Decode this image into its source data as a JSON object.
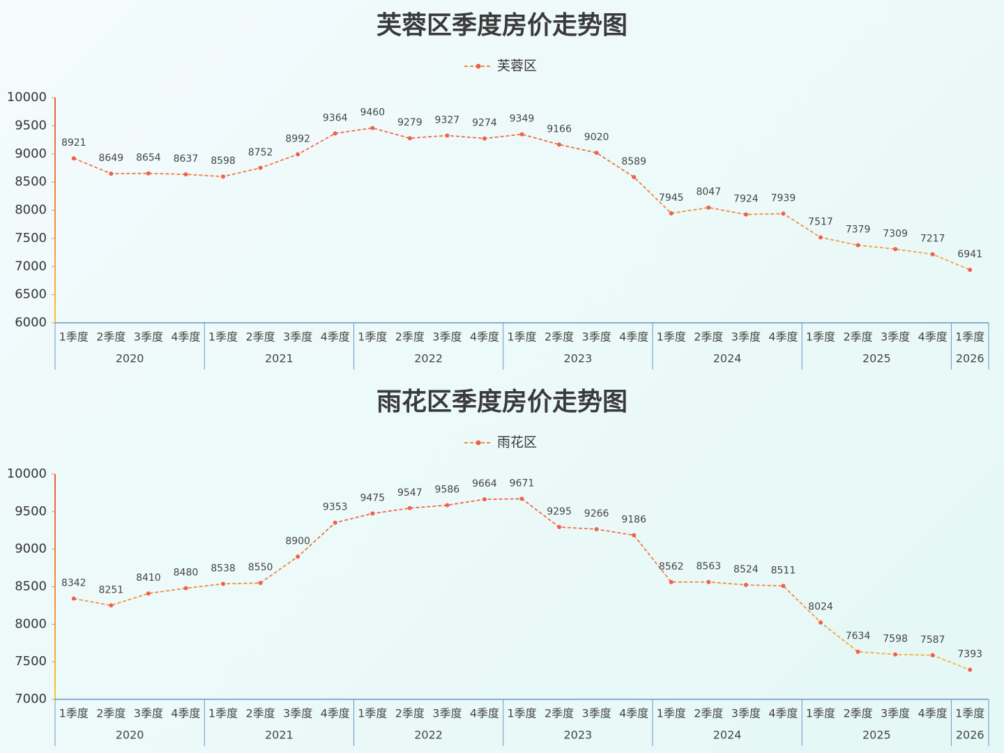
{
  "chart_data": [
    {
      "type": "line",
      "title": "芙蓉区季度房价走势图",
      "groups": [
        {
          "label": "2020",
          "categories": [
            "1季度",
            "2季度",
            "3季度",
            "4季度"
          ]
        },
        {
          "label": "2021",
          "categories": [
            "1季度",
            "2季度",
            "3季度",
            "4季度"
          ]
        },
        {
          "label": "2022",
          "categories": [
            "1季度",
            "2季度",
            "3季度",
            "4季度"
          ]
        },
        {
          "label": "2023",
          "categories": [
            "1季度",
            "2季度",
            "3季度",
            "4季度"
          ]
        },
        {
          "label": "2024",
          "categories": [
            "1季度",
            "2季度",
            "3季度",
            "4季度"
          ]
        },
        {
          "label": "2025",
          "categories": [
            "1季度",
            "2季度",
            "3季度",
            "4季度"
          ]
        },
        {
          "label": "2026",
          "categories": [
            "1季度"
          ]
        }
      ],
      "series": [
        {
          "name": "芙蓉区",
          "color": "#f0604a",
          "values": [
            8921,
            8649,
            8654,
            8637,
            8598,
            8752,
            8992,
            9364,
            9460,
            9279,
            9327,
            9274,
            9349,
            9166,
            9020,
            8589,
            7945,
            8047,
            7924,
            7939,
            7517,
            7379,
            7309,
            7217,
            6941
          ]
        }
      ],
      "color_range": [
        "#f7c531",
        "#f08a3c",
        "#ee5a4a"
      ],
      "ylim": [
        6000,
        10000
      ],
      "yticks": [
        6000,
        6500,
        7000,
        7500,
        8000,
        8500,
        9000,
        9500,
        10000
      ],
      "grid": false
    },
    {
      "type": "line",
      "title": "雨花区季度房价走势图",
      "groups": [
        {
          "label": "2020",
          "categories": [
            "1季度",
            "2季度",
            "3季度",
            "4季度"
          ]
        },
        {
          "label": "2021",
          "categories": [
            "1季度",
            "2季度",
            "3季度",
            "4季度"
          ]
        },
        {
          "label": "2022",
          "categories": [
            "1季度",
            "2季度",
            "3季度",
            "4季度"
          ]
        },
        {
          "label": "2023",
          "categories": [
            "1季度",
            "2季度",
            "3季度",
            "4季度"
          ]
        },
        {
          "label": "2024",
          "categories": [
            "1季度",
            "2季度",
            "3季度",
            "4季度"
          ]
        },
        {
          "label": "2025",
          "categories": [
            "1季度",
            "2季度",
            "3季度",
            "4季度"
          ]
        },
        {
          "label": "2026",
          "categories": [
            "1季度"
          ]
        }
      ],
      "series": [
        {
          "name": "雨花区",
          "color": "#f0604a",
          "values": [
            8342,
            8251,
            8410,
            8480,
            8538,
            8550,
            8900,
            9353,
            9475,
            9547,
            9586,
            9664,
            9671,
            9295,
            9266,
            9186,
            8562,
            8563,
            8524,
            8511,
            8024,
            7634,
            7598,
            7587,
            7393
          ]
        }
      ],
      "color_range": [
        "#f7c531",
        "#f08a3c",
        "#ee5a4a"
      ],
      "ylim": [
        7000,
        10000
      ],
      "yticks": [
        7000,
        7500,
        8000,
        8500,
        9000,
        9500,
        10000
      ],
      "grid": false
    }
  ]
}
